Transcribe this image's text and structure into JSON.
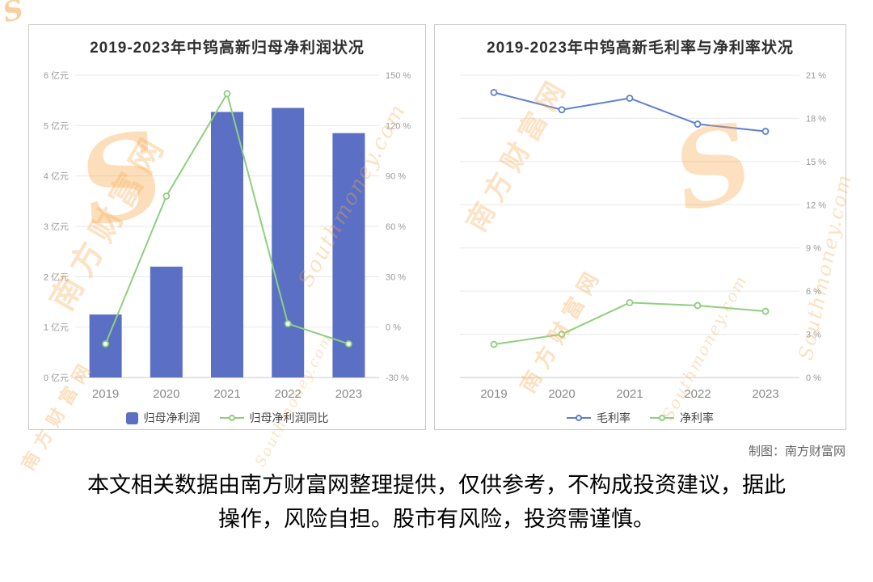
{
  "watermark": {
    "cn": "南方财富网",
    "en": "Southmoney.com",
    "initial": "S",
    "color": "#f8a94e"
  },
  "attribution": "制图：南方财富网",
  "disclaimer": "本文相关数据由南方财富网整理提供，仅供参考，不构成投资建议，据此操作，风险自担。股市有风险，投资需谨慎。",
  "chart_data": [
    {
      "type": "bar",
      "title": "2019-2023年中钨高新归母净利润状况",
      "categories": [
        "2019",
        "2020",
        "2021",
        "2022",
        "2023"
      ],
      "series": [
        {
          "name": "归母净利润",
          "type": "bar",
          "axis": "left",
          "color": "#5b6fc4",
          "values": [
            1.25,
            2.2,
            5.27,
            5.35,
            4.85
          ]
        },
        {
          "name": "归母净利润同比",
          "type": "line",
          "axis": "right",
          "color": "#8fcf7e",
          "values": [
            -10,
            78,
            139,
            2,
            -10
          ]
        }
      ],
      "left_axis": {
        "unit": " 亿元",
        "min": 0,
        "max": 6,
        "step": 1
      },
      "right_axis": {
        "unit": " %",
        "min": -30,
        "max": 150,
        "step": 30
      },
      "grid": true,
      "legend_position": "bottom"
    },
    {
      "type": "line",
      "title": "2019-2023年中钨高新毛利率与净利率状况",
      "categories": [
        "2019",
        "2020",
        "2021",
        "2022",
        "2023"
      ],
      "series": [
        {
          "name": "毛利率",
          "type": "line",
          "axis": "right",
          "color": "#5d7fd3",
          "values": [
            19.8,
            18.6,
            19.4,
            17.6,
            17.1
          ]
        },
        {
          "name": "净利率",
          "type": "line",
          "axis": "right",
          "color": "#8fcf7e",
          "values": [
            2.3,
            3.0,
            5.2,
            5.0,
            4.6
          ]
        }
      ],
      "right_axis": {
        "unit": " %",
        "min": 0,
        "max": 21,
        "step": 3
      },
      "grid": true,
      "legend_position": "bottom"
    }
  ]
}
